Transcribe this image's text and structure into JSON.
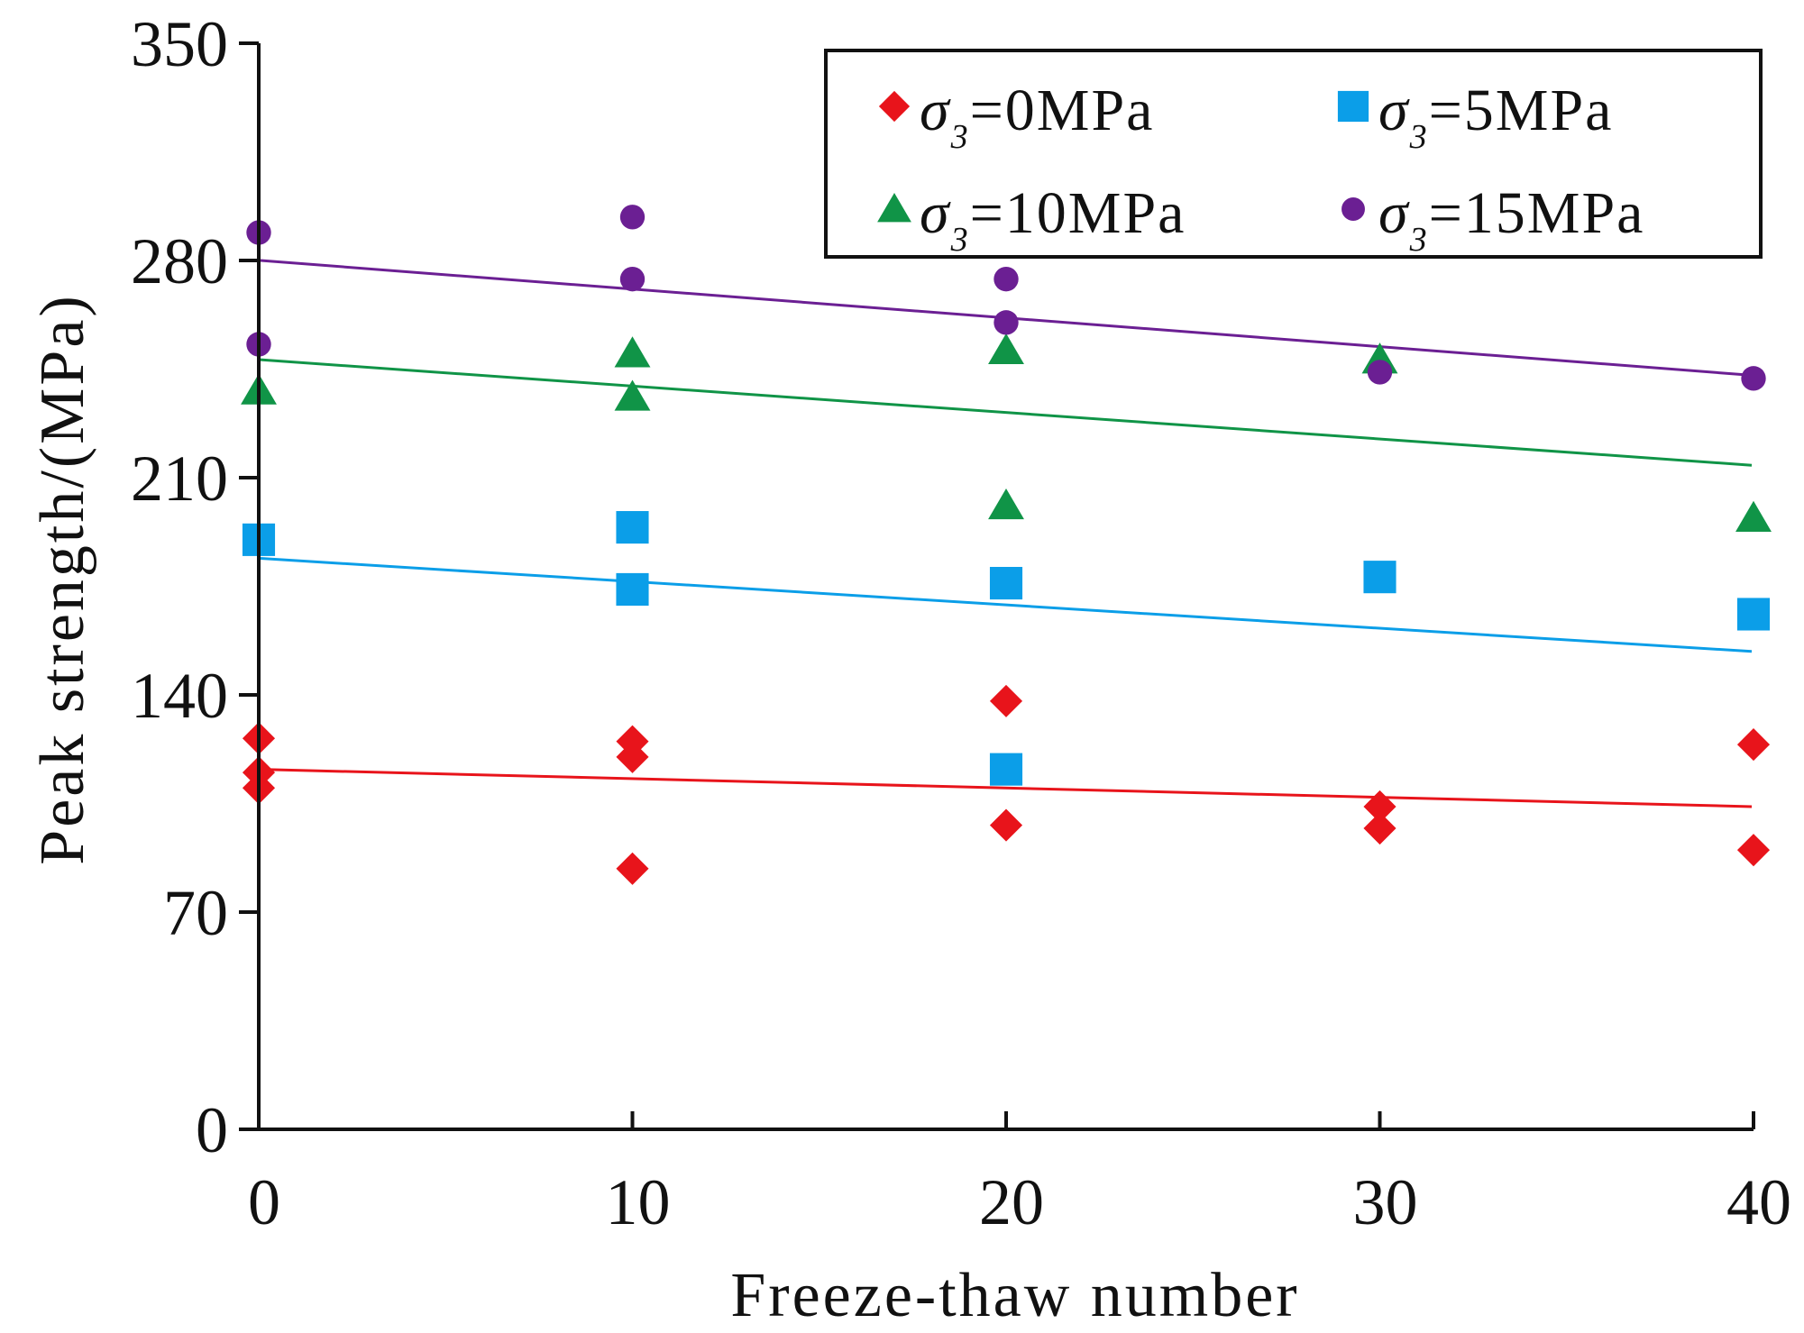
{
  "chart_data": {
    "type": "scatter",
    "xlabel": "Freeze-thaw number",
    "ylabel": "Peak strength/(MPa)",
    "xlim": [
      0,
      40
    ],
    "ylim": [
      0,
      350
    ],
    "x_ticks": [
      0,
      10,
      20,
      30,
      40
    ],
    "y_ticks": [
      0,
      70,
      140,
      210,
      280,
      350
    ],
    "grid": false,
    "legend": {
      "position": "top-right",
      "columns": 2,
      "frame": true
    },
    "series": [
      {
        "name": "σ3=0MPa",
        "symbol": "σ",
        "subscript": "3",
        "value_text": "=0MPa",
        "marker": "diamond",
        "color": "#e8141b",
        "points": [
          {
            "x": 0,
            "y": 126
          },
          {
            "x": 0,
            "y": 115
          },
          {
            "x": 0,
            "y": 110
          },
          {
            "x": 10,
            "y": 125
          },
          {
            "x": 10,
            "y": 120
          },
          {
            "x": 10,
            "y": 84
          },
          {
            "x": 20,
            "y": 138
          },
          {
            "x": 20,
            "y": 98
          },
          {
            "x": 30,
            "y": 104
          },
          {
            "x": 30,
            "y": 97
          },
          {
            "x": 40,
            "y": 124
          },
          {
            "x": 40,
            "y": 90
          }
        ],
        "trend": {
          "x": [
            0,
            40
          ],
          "y": [
            116,
            104
          ]
        }
      },
      {
        "name": "σ3=5MPa",
        "symbol": "σ",
        "subscript": "3",
        "value_text": "=5MPa",
        "marker": "square",
        "color": "#0b9ee8",
        "points": [
          {
            "x": 0,
            "y": 190
          },
          {
            "x": 10,
            "y": 194
          },
          {
            "x": 10,
            "y": 174
          },
          {
            "x": 20,
            "y": 176
          },
          {
            "x": 20,
            "y": 116
          },
          {
            "x": 30,
            "y": 178
          },
          {
            "x": 40,
            "y": 166
          }
        ],
        "trend": {
          "x": [
            0,
            40
          ],
          "y": [
            184,
            154
          ]
        }
      },
      {
        "name": "σ3=10MPa",
        "symbol": "σ",
        "subscript": "3",
        "value_text": "=10MPa",
        "marker": "triangle",
        "color": "#109447",
        "points": [
          {
            "x": 0,
            "y": 238
          },
          {
            "x": 10,
            "y": 250
          },
          {
            "x": 10,
            "y": 236
          },
          {
            "x": 20,
            "y": 251
          },
          {
            "x": 20,
            "y": 201
          },
          {
            "x": 30,
            "y": 248
          },
          {
            "x": 40,
            "y": 197
          }
        ],
        "trend": {
          "x": [
            0,
            40
          ],
          "y": [
            248,
            214
          ]
        }
      },
      {
        "name": "σ3=15MPa",
        "symbol": "σ",
        "subscript": "3",
        "value_text": "=15MPa",
        "marker": "circle",
        "color": "#6b1f93",
        "points": [
          {
            "x": 0,
            "y": 289
          },
          {
            "x": 0,
            "y": 253
          },
          {
            "x": 10,
            "y": 294
          },
          {
            "x": 10,
            "y": 274
          },
          {
            "x": 20,
            "y": 274
          },
          {
            "x": 20,
            "y": 260
          },
          {
            "x": 30,
            "y": 244
          },
          {
            "x": 40,
            "y": 242
          }
        ],
        "trend": {
          "x": [
            0,
            40
          ],
          "y": [
            280,
            243
          ]
        }
      }
    ]
  }
}
